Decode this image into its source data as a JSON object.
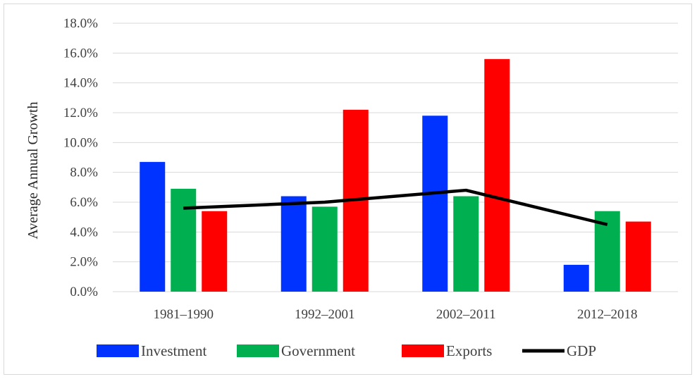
{
  "chart_data": {
    "type": "bar",
    "title": "",
    "xlabel": "",
    "ylabel": "Average Annual Growth",
    "categories": [
      "1981–1990",
      "1992–2001",
      "2002–2011",
      "2012–2018"
    ],
    "yticks": [
      "0.0%",
      "2.0%",
      "4.0%",
      "6.0%",
      "8.0%",
      "10.0%",
      "12.0%",
      "14.0%",
      "16.0%",
      "18.0%"
    ],
    "ylim": [
      0,
      18
    ],
    "grid": true,
    "legend_position": "bottom",
    "series": [
      {
        "name": "Investment",
        "kind": "bar",
        "color": "#0033ff",
        "values": [
          8.7,
          6.4,
          11.8,
          1.8
        ]
      },
      {
        "name": "Government",
        "kind": "bar",
        "color": "#00b050",
        "values": [
          6.9,
          5.7,
          6.4,
          5.4
        ]
      },
      {
        "name": "Exports",
        "kind": "bar",
        "color": "#ff0000",
        "values": [
          5.4,
          12.2,
          15.6,
          4.7
        ]
      },
      {
        "name": "GDP",
        "kind": "line",
        "color": "#000000",
        "values": [
          5.6,
          6.0,
          6.8,
          4.5
        ]
      }
    ]
  }
}
